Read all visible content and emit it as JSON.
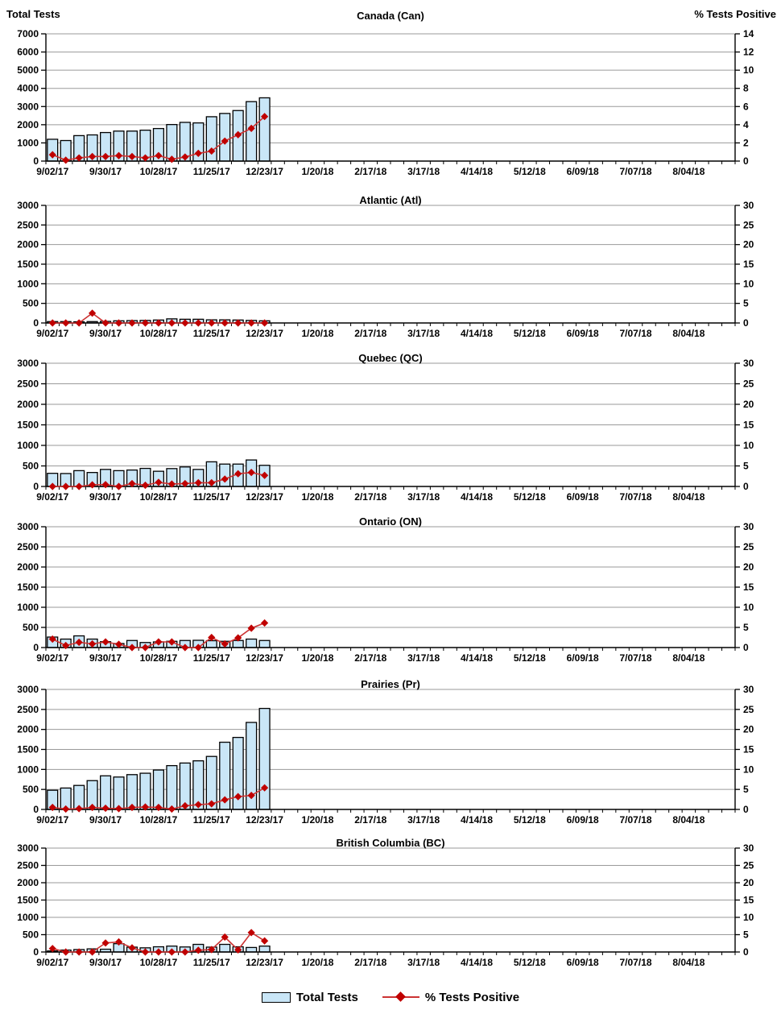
{
  "header": {
    "left_axis_title": "Total Tests",
    "right_axis_title": "% Tests Positive"
  },
  "legend": {
    "items": [
      {
        "label": "Total Tests",
        "swatch": "bar"
      },
      {
        "label": "% Tests Positive",
        "swatch": "line-diamond"
      }
    ]
  },
  "colors": {
    "bar_fill": "#C9E6F7",
    "bar_border": "#000000",
    "line": "#CC3333",
    "marker": "#C00000",
    "gridline": "#9A9A9A",
    "axis": "#000000",
    "text": "#000000"
  },
  "x_axis": {
    "total_weekly_slots": 52,
    "label_every_n_weeks": 4,
    "labels": [
      "9/02/17",
      "9/30/17",
      "10/28/17",
      "11/25/17",
      "12/23/17",
      "1/20/18",
      "2/17/18",
      "3/17/18",
      "4/14/18",
      "5/12/18",
      "6/09/18",
      "7/07/18",
      "8/04/18"
    ]
  },
  "week_dates": [
    "9/02/17",
    "9/09/17",
    "9/16/17",
    "9/23/17",
    "9/30/17",
    "10/07/17",
    "10/14/17",
    "10/21/17",
    "10/28/17",
    "11/04/17",
    "11/11/17",
    "11/18/17",
    "11/25/17",
    "12/02/17",
    "12/09/17",
    "12/16/17",
    "12/23/17"
  ],
  "chart_data": [
    {
      "type": "bar+line",
      "title": "Canada (Can)",
      "left_axis": {
        "min": 0,
        "max": 7000,
        "step": 1000,
        "label": "Total Tests"
      },
      "right_axis": {
        "min": 0,
        "max": 14,
        "step": 2,
        "label": "% Tests Positive"
      },
      "series": [
        {
          "name": "Total Tests",
          "type": "bar",
          "axis": "left",
          "values": [
            1200,
            1130,
            1400,
            1440,
            1570,
            1650,
            1650,
            1700,
            1790,
            2010,
            2130,
            2100,
            2440,
            2620,
            2780,
            3270,
            3480
          ]
        },
        {
          "name": "% Tests Positive",
          "type": "line",
          "axis": "right",
          "values": [
            0.7,
            0.1,
            0.35,
            0.5,
            0.5,
            0.6,
            0.5,
            0.35,
            0.6,
            0.2,
            0.45,
            0.85,
            1.1,
            2.2,
            2.9,
            3.6,
            4.9
          ]
        }
      ]
    },
    {
      "type": "bar+line",
      "title": "Atlantic (Atl)",
      "left_axis": {
        "min": 0,
        "max": 3000,
        "step": 500
      },
      "right_axis": {
        "min": 0,
        "max": 30,
        "step": 5
      },
      "series": [
        {
          "name": "Total Tests",
          "type": "bar",
          "axis": "left",
          "values": [
            35,
            35,
            30,
            35,
            40,
            55,
            60,
            65,
            75,
            105,
            95,
            95,
            80,
            80,
            75,
            65,
            55
          ]
        },
        {
          "name": "% Tests Positive",
          "type": "line",
          "axis": "right",
          "values": [
            0,
            0,
            0,
            2.5,
            0,
            0,
            0,
            0,
            0,
            0,
            0,
            0,
            0,
            0,
            0,
            0,
            0
          ]
        }
      ]
    },
    {
      "type": "bar+line",
      "title": "Quebec (QC)",
      "left_axis": {
        "min": 0,
        "max": 3000,
        "step": 500
      },
      "right_axis": {
        "min": 0,
        "max": 30,
        "step": 5
      },
      "series": [
        {
          "name": "Total Tests",
          "type": "bar",
          "axis": "left",
          "values": [
            320,
            315,
            385,
            340,
            415,
            385,
            400,
            440,
            370,
            435,
            475,
            415,
            600,
            545,
            545,
            645,
            515
          ]
        },
        {
          "name": "% Tests Positive",
          "type": "line",
          "axis": "right",
          "values": [
            0,
            0,
            0,
            0.4,
            0.45,
            0,
            0.7,
            0.3,
            1.0,
            0.6,
            0.7,
            0.9,
            0.9,
            1.8,
            3.1,
            3.4,
            2.7
          ]
        }
      ]
    },
    {
      "type": "bar+line",
      "title": "Ontario (ON)",
      "left_axis": {
        "min": 0,
        "max": 3000,
        "step": 500
      },
      "right_axis": {
        "min": 0,
        "max": 30,
        "step": 5
      },
      "series": [
        {
          "name": "Total Tests",
          "type": "bar",
          "axis": "left",
          "values": [
            260,
            210,
            290,
            210,
            145,
            100,
            175,
            125,
            140,
            155,
            175,
            180,
            170,
            155,
            175,
            210,
            175
          ]
        },
        {
          "name": "% Tests Positive",
          "type": "line",
          "axis": "right",
          "values": [
            2.1,
            0.5,
            1.3,
            0.9,
            1.4,
            0.8,
            0,
            0,
            1.4,
            1.4,
            0,
            0,
            2.5,
            0.9,
            2.4,
            4.8,
            6.1
          ]
        }
      ]
    },
    {
      "type": "bar+line",
      "title": "Prairies (Pr)",
      "left_axis": {
        "min": 0,
        "max": 3000,
        "step": 500
      },
      "right_axis": {
        "min": 0,
        "max": 30,
        "step": 5
      },
      "series": [
        {
          "name": "Total Tests",
          "type": "bar",
          "axis": "left",
          "values": [
            480,
            535,
            600,
            720,
            840,
            810,
            870,
            905,
            985,
            1095,
            1160,
            1215,
            1325,
            1680,
            1800,
            2175,
            2525
          ]
        },
        {
          "name": "% Tests Positive",
          "type": "line",
          "axis": "right",
          "values": [
            0.5,
            0.1,
            0.2,
            0.5,
            0.3,
            0.2,
            0.5,
            0.6,
            0.5,
            0.1,
            0.9,
            1.2,
            1.4,
            2.4,
            3.2,
            3.5,
            5.4
          ]
        }
      ]
    },
    {
      "type": "bar+line",
      "title": "British Columbia (BC)",
      "left_axis": {
        "min": 0,
        "max": 3000,
        "step": 500
      },
      "right_axis": {
        "min": 0,
        "max": 30,
        "step": 5
      },
      "series": [
        {
          "name": "Total Tests",
          "type": "bar",
          "axis": "left",
          "values": [
            30,
            55,
            70,
            90,
            80,
            240,
            140,
            120,
            150,
            170,
            145,
            220,
            140,
            220,
            150,
            130,
            170
          ]
        },
        {
          "name": "% Tests Positive",
          "type": "line",
          "axis": "right",
          "values": [
            1.0,
            0,
            0,
            0,
            2.6,
            2.9,
            1.2,
            0,
            0,
            0,
            0,
            0.5,
            0.7,
            4.3,
            0.6,
            5.6,
            3.2
          ]
        }
      ]
    }
  ]
}
